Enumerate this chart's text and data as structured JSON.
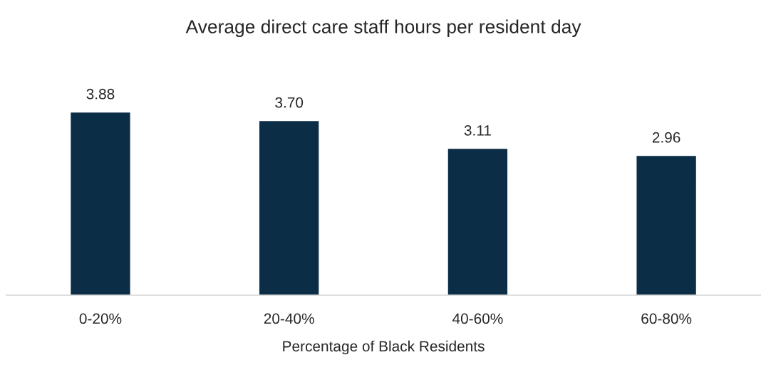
{
  "chart_data": {
    "type": "bar",
    "title": "Average direct care staff hours per resident day",
    "xlabel": "Percentage of Black Residents",
    "categories": [
      "0-20%",
      "20-40%",
      "40-60%",
      "60-80%"
    ],
    "values": [
      3.88,
      3.7,
      3.11,
      2.96
    ],
    "value_labels": [
      "3.88",
      "3.70",
      "3.11",
      "2.96"
    ],
    "color": "#0b2d45",
    "grid": false,
    "legend": false
  }
}
